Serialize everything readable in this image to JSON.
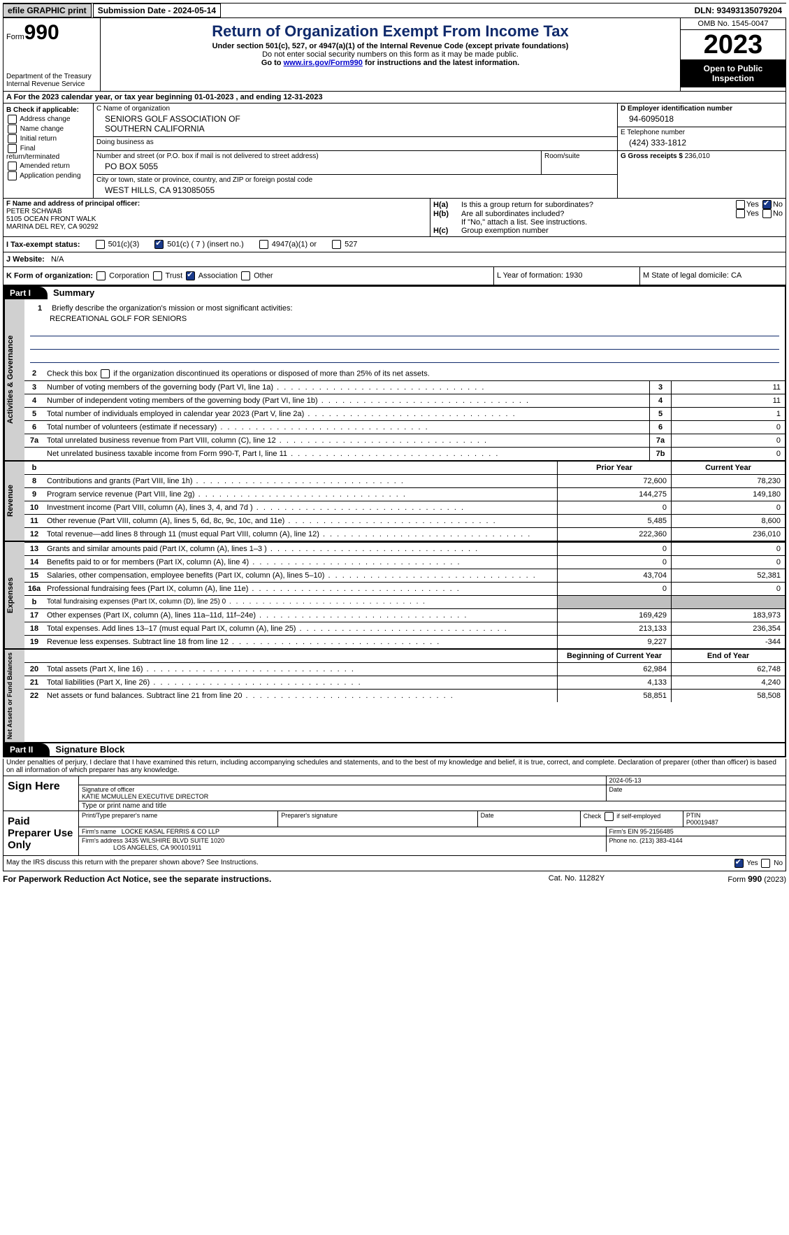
{
  "topbar": {
    "efile": "efile GRAPHIC print",
    "submission_label": "Submission Date - 2024-05-14",
    "dln_label": "DLN: 93493135079204"
  },
  "header": {
    "form_label": "Form",
    "form_no": "990",
    "dept": "Department of the Treasury\nInternal Revenue Service",
    "title": "Return of Organization Exempt From Income Tax",
    "subtitle": "Under section 501(c), 527, or 4947(a)(1) of the Internal Revenue Code (except private foundations)",
    "note1": "Do not enter social security numbers on this form as it may be made public.",
    "note2_pre": "Go to ",
    "note2_link": "www.irs.gov/Form990",
    "note2_post": " for instructions and the latest information.",
    "omb": "OMB No. 1545-0047",
    "year": "2023",
    "open": "Open to Public Inspection"
  },
  "lineA": "A  For the 2023 calendar year, or tax year beginning 01-01-2023    , and ending 12-31-2023",
  "boxB": {
    "title": "B Check if applicable:",
    "items": [
      "Address change",
      "Name change",
      "Initial return",
      "Final return/terminated",
      "Amended return",
      "Application pending"
    ]
  },
  "boxC": {
    "name_label": "C Name of organization",
    "name": "SENIORS GOLF ASSOCIATION OF\nSOUTHERN CALIFORNIA",
    "dba_label": "Doing business as",
    "dba": "",
    "street_label": "Number and street (or P.O. box if mail is not delivered to street address)",
    "street": "PO BOX 5055",
    "room_label": "Room/suite",
    "city_label": "City or town, state or province, country, and ZIP or foreign postal code",
    "city": "WEST HILLS, CA  913085055"
  },
  "boxD": {
    "label": "D Employer identification number",
    "value": "94-6095018"
  },
  "boxE": {
    "label": "E Telephone number",
    "value": "(424) 333-1812"
  },
  "boxG": {
    "label": "G Gross receipts $",
    "value": "236,010"
  },
  "boxF": {
    "label": "F  Name and address of principal officer:",
    "name": "PETER SCHWAB",
    "addr1": "5105 OCEAN FRONT WALK",
    "addr2": "MARINA DEL REY, CA  90292"
  },
  "boxH": {
    "a_label": "H(a)",
    "a_text": "Is this a group return for subordinates?",
    "a_yes": false,
    "a_no": true,
    "b_label": "H(b)",
    "b_text": "Are all subordinates included?",
    "b_yes": false,
    "b_no": false,
    "b_note": "If \"No,\" attach a list. See instructions.",
    "c_label": "H(c)",
    "c_text": "Group exemption number",
    "c_val": ""
  },
  "boxI": {
    "label": "I   Tax-exempt status:",
    "c3": false,
    "c": true,
    "c_no": "7",
    "c_insert": "(insert no.)",
    "a4947": false,
    "s527": false
  },
  "boxJ": {
    "label": "J   Website:",
    "value": "N/A"
  },
  "boxK": {
    "label": "K Form of organization:",
    "corp": false,
    "trust": false,
    "assoc": true,
    "other": false,
    "L": "L Year of formation: 1930",
    "M": "M State of legal domicile: CA"
  },
  "part1": {
    "title": "Part I",
    "subtitle": "Summary",
    "sections": [
      {
        "side": "Activities & Governance",
        "mission_label": "Briefly describe the organization's mission or most significant activities:",
        "mission": "RECREATIONAL GOLF FOR SENIORS",
        "line2": "Check this box    if the organization discontinued its operations or disposed of more than 25% of its net assets.",
        "rows": [
          {
            "n": "3",
            "d": "Number of voting members of the governing body (Part VI, line 1a)",
            "box": "3",
            "v": "11"
          },
          {
            "n": "4",
            "d": "Number of independent voting members of the governing body (Part VI, line 1b)",
            "box": "4",
            "v": "11"
          },
          {
            "n": "5",
            "d": "Total number of individuals employed in calendar year 2023 (Part V, line 2a)",
            "box": "5",
            "v": "1"
          },
          {
            "n": "6",
            "d": "Total number of volunteers (estimate if necessary)",
            "box": "6",
            "v": "0"
          },
          {
            "n": "7a",
            "d": "Total unrelated business revenue from Part VIII, column (C), line 12",
            "box": "7a",
            "v": "0"
          },
          {
            "n": "",
            "d": "Net unrelated business taxable income from Form 990-T, Part I, line 11",
            "box": "7b",
            "v": "0"
          }
        ]
      },
      {
        "side": "Revenue",
        "hdr": [
          "Prior Year",
          "Current Year"
        ],
        "rows": [
          {
            "n": "8",
            "d": "Contributions and grants (Part VIII, line 1h)",
            "p": "72,600",
            "c": "78,230"
          },
          {
            "n": "9",
            "d": "Program service revenue (Part VIII, line 2g)",
            "p": "144,275",
            "c": "149,180"
          },
          {
            "n": "10",
            "d": "Investment income (Part VIII, column (A), lines 3, 4, and 7d )",
            "p": "0",
            "c": "0"
          },
          {
            "n": "11",
            "d": "Other revenue (Part VIII, column (A), lines 5, 6d, 8c, 9c, 10c, and 11e)",
            "p": "5,485",
            "c": "8,600"
          },
          {
            "n": "12",
            "d": "Total revenue—add lines 8 through 11 (must equal Part VIII, column (A), line 12)",
            "p": "222,360",
            "c": "236,010"
          }
        ]
      },
      {
        "side": "Expenses",
        "rows": [
          {
            "n": "13",
            "d": "Grants and similar amounts paid (Part IX, column (A), lines 1–3 )",
            "p": "0",
            "c": "0"
          },
          {
            "n": "14",
            "d": "Benefits paid to or for members (Part IX, column (A), line 4)",
            "p": "0",
            "c": "0"
          },
          {
            "n": "15",
            "d": "Salaries, other compensation, employee benefits (Part IX, column (A), lines 5–10)",
            "p": "43,704",
            "c": "52,381"
          },
          {
            "n": "16a",
            "d": "Professional fundraising fees (Part IX, column (A), line 11e)",
            "p": "0",
            "c": "0"
          },
          {
            "n": "b",
            "d": "Total fundraising expenses (Part IX, column (D), line 25) 0",
            "p": "grey",
            "c": "grey",
            "small": true
          },
          {
            "n": "17",
            "d": "Other expenses (Part IX, column (A), lines 11a–11d, 11f–24e)",
            "p": "169,429",
            "c": "183,973"
          },
          {
            "n": "18",
            "d": "Total expenses. Add lines 13–17 (must equal Part IX, column (A), line 25)",
            "p": "213,133",
            "c": "236,354"
          },
          {
            "n": "19",
            "d": "Revenue less expenses. Subtract line 18 from line 12",
            "p": "9,227",
            "c": "-344"
          }
        ]
      },
      {
        "side": "Net Assets or Fund Balances",
        "hdr": [
          "Beginning of Current Year",
          "End of Year"
        ],
        "rows": [
          {
            "n": "20",
            "d": "Total assets (Part X, line 16)",
            "p": "62,984",
            "c": "62,748"
          },
          {
            "n": "21",
            "d": "Total liabilities (Part X, line 26)",
            "p": "4,133",
            "c": "4,240"
          },
          {
            "n": "22",
            "d": "Net assets or fund balances. Subtract line 21 from line 20",
            "p": "58,851",
            "c": "58,508"
          }
        ]
      }
    ]
  },
  "part2": {
    "title": "Part II",
    "subtitle": "Signature Block",
    "declaration": "Under penalties of perjury, I declare that I have examined this return, including accompanying schedules and statements, and to the best of my knowledge and belief, it is true, correct, and complete. Declaration of preparer (other than officer) is based on all information of which preparer has any knowledge."
  },
  "sign": {
    "here": "Sign Here",
    "date": "2024-05-13",
    "sig_label": "Signature of officer",
    "date_label": "Date",
    "name": "KATIE MCMULLEN  EXECUTIVE DIRECTOR",
    "type_label": "Type or print name and title"
  },
  "preparer": {
    "here": "Paid Preparer Use Only",
    "h1": "Print/Type preparer's name",
    "h2": "Preparer's signature",
    "h3": "Date",
    "h4_pre": "Check",
    "h4_post": "if self-employed",
    "h4_checked": false,
    "h5": "PTIN",
    "ptin": "P00019487",
    "firm_label": "Firm's name",
    "firm": "LOCKE KASAL FERRIS & CO LLP",
    "ein_label": "Firm's EIN",
    "ein": "95-2156485",
    "addr_label": "Firm's address",
    "addr1": "3435 WILSHIRE BLVD SUITE 1020",
    "addr2": "LOS ANGELES, CA  900101911",
    "phone_label": "Phone no.",
    "phone": "(213) 383-4144"
  },
  "discuss": {
    "text": "May the IRS discuss this return with the preparer shown above? See Instructions.",
    "yes": true,
    "no": false
  },
  "footer": {
    "left": "For Paperwork Reduction Act Notice, see the separate instructions.",
    "mid": "Cat. No. 11282Y",
    "right": "Form 990 (2023)"
  }
}
